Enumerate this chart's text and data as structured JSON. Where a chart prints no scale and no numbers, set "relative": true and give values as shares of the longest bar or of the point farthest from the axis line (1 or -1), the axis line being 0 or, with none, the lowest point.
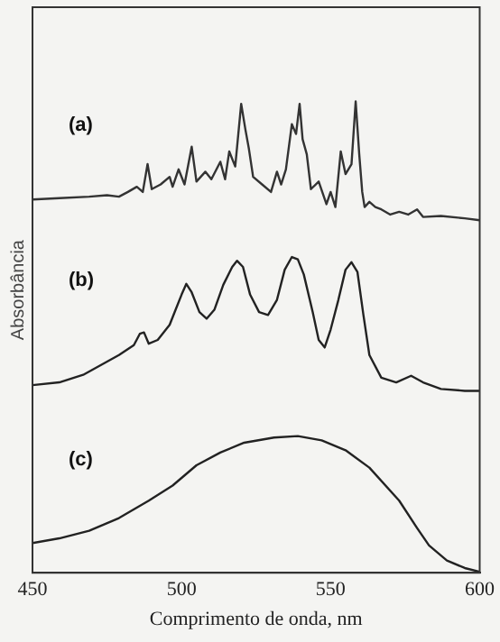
{
  "chart_data": {
    "type": "line",
    "xlabel": "Comprimento de onda, nm",
    "ylabel": "Absorbância",
    "relative": true,
    "xlim": [
      450,
      600
    ],
    "xticks": [
      450,
      500,
      550,
      600
    ],
    "marker": "none",
    "line_style": "solid",
    "grid": false,
    "legend": false,
    "annotations": [
      "(a)",
      "(b)",
      "(c)"
    ],
    "series": [
      {
        "color": "#333333",
        "x": [
          450,
          459,
          469,
          475,
          479,
          482,
          485,
          487,
          488.6,
          490,
          493,
          496,
          497,
          499,
          501,
          503.4,
          505,
          508,
          510,
          513,
          514.6,
          516,
          518,
          520,
          521.4,
          522.6,
          524,
          527,
          530,
          532,
          533.4,
          535,
          537,
          538.4,
          539.6,
          540.6,
          542,
          543.4,
          546,
          548.6,
          550,
          551.6,
          553.4,
          555,
          557,
          558.4,
          559.6,
          560.6,
          561.4,
          563,
          565,
          567,
          570,
          573,
          576,
          579,
          581,
          587,
          595,
          600
        ],
        "values": [
          0.792,
          0.795,
          0.798,
          0.801,
          0.798,
          0.808,
          0.819,
          0.808,
          0.867,
          0.814,
          0.824,
          0.84,
          0.819,
          0.856,
          0.824,
          0.904,
          0.83,
          0.851,
          0.835,
          0.872,
          0.835,
          0.894,
          0.862,
          0.995,
          0.941,
          0.899,
          0.84,
          0.824,
          0.808,
          0.851,
          0.824,
          0.856,
          0.952,
          0.931,
          0.995,
          0.92,
          0.888,
          0.814,
          0.83,
          0.782,
          0.808,
          0.776,
          0.894,
          0.846,
          0.867,
          1.0,
          0.888,
          0.808,
          0.776,
          0.787,
          0.776,
          0.771,
          0.76,
          0.766,
          0.76,
          0.771,
          0.755,
          0.757,
          0.752,
          0.748
        ]
      },
      {
        "color": "#222222",
        "x": [
          450,
          459,
          467,
          473,
          479,
          484,
          486,
          487.4,
          489,
          492,
          496,
          498,
          500,
          501.6,
          503.4,
          506,
          508.4,
          511,
          514,
          517,
          518.6,
          520.6,
          523,
          526,
          529,
          532,
          534.6,
          537,
          539,
          541,
          544,
          546,
          548,
          550,
          552.6,
          555,
          557,
          559,
          561,
          563,
          567,
          572,
          577,
          581,
          587,
          595,
          600
        ],
        "values": [
          0.398,
          0.404,
          0.42,
          0.441,
          0.462,
          0.483,
          0.507,
          0.51,
          0.486,
          0.494,
          0.526,
          0.558,
          0.59,
          0.613,
          0.595,
          0.553,
          0.539,
          0.558,
          0.611,
          0.649,
          0.662,
          0.649,
          0.59,
          0.553,
          0.547,
          0.579,
          0.643,
          0.67,
          0.665,
          0.633,
          0.553,
          0.494,
          0.478,
          0.516,
          0.579,
          0.643,
          0.659,
          0.638,
          0.547,
          0.462,
          0.414,
          0.404,
          0.418,
          0.404,
          0.39,
          0.386,
          0.386
        ]
      },
      {
        "color": "#222222",
        "x": [
          450,
          459,
          469,
          479,
          489,
          497,
          505,
          513,
          521,
          531,
          539,
          547,
          555,
          563,
          573,
          579,
          583,
          589,
          595,
          600
        ],
        "values": [
          0.063,
          0.073,
          0.089,
          0.116,
          0.153,
          0.185,
          0.228,
          0.255,
          0.276,
          0.287,
          0.29,
          0.281,
          0.26,
          0.223,
          0.153,
          0.095,
          0.058,
          0.026,
          0.01,
          0.002
        ]
      }
    ]
  }
}
